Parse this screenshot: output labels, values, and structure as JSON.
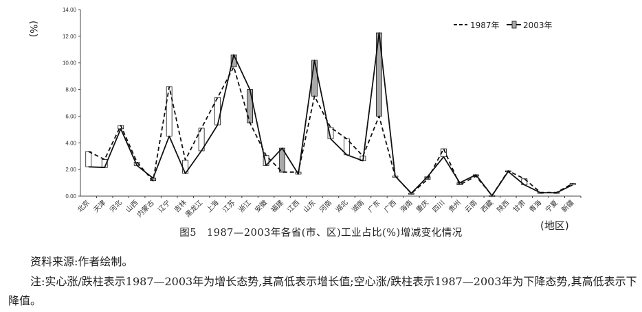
{
  "figure": {
    "caption": "图5　1987—2003年各省(市、区)工业占比(%)增减变化情况",
    "x_unit": "(地区)",
    "source": "资料来源:作者绘制。",
    "note": "注:实心涨/跌柱表示1987—2003年为增长态势,其高低表示增长值;空心涨/跌柱表示1987—2003年为下降态势,其高低表示下降值。"
  },
  "chart_data": {
    "type": "line",
    "ylabel": "(%)",
    "xlabel": "(地区)",
    "ylim": [
      0,
      14
    ],
    "y_ticks": [
      "0.00",
      "2.00",
      "4.00",
      "6.00",
      "8.00",
      "10.00",
      "12.00",
      "14.00"
    ],
    "categories": [
      "北京",
      "天津",
      "河北",
      "山西",
      "内蒙古",
      "辽宁",
      "吉林",
      "黑龙江",
      "上海",
      "江苏",
      "浙江",
      "安徽",
      "福建",
      "江西",
      "山东",
      "河南",
      "湖北",
      "湖南",
      "广东",
      "广西",
      "海南",
      "重庆",
      "四川",
      "贵州",
      "云南",
      "西藏",
      "陕西",
      "甘肃",
      "青海",
      "宁夏",
      "新疆"
    ],
    "series": [
      {
        "name": "1987年",
        "style": "dashed",
        "values": [
          3.35,
          2.75,
          5.3,
          2.55,
          1.15,
          8.2,
          2.7,
          5.1,
          7.4,
          9.7,
          5.5,
          3.05,
          1.8,
          1.8,
          7.5,
          5.15,
          4.3,
          3.0,
          6.0,
          1.5,
          0.2,
          1.25,
          3.55,
          0.85,
          1.5,
          0.04,
          1.9,
          1.3,
          0.28,
          0.28,
          0.95
        ]
      },
      {
        "name": "2003年",
        "style": "solid",
        "values": [
          2.2,
          2.15,
          5.05,
          2.3,
          1.35,
          4.5,
          1.7,
          3.4,
          5.35,
          10.6,
          8.0,
          2.3,
          3.6,
          1.65,
          10.2,
          4.3,
          3.1,
          2.65,
          12.25,
          1.5,
          0.22,
          1.45,
          2.95,
          1.0,
          1.6,
          0.03,
          1.85,
          0.85,
          0.25,
          0.25,
          0.85
        ]
      }
    ],
    "legend_position": "top-right",
    "grid": false,
    "colors": {
      "increase_bar": "#a9a9a9",
      "decrease_bar": "#ffffff",
      "line": "#111111"
    }
  }
}
